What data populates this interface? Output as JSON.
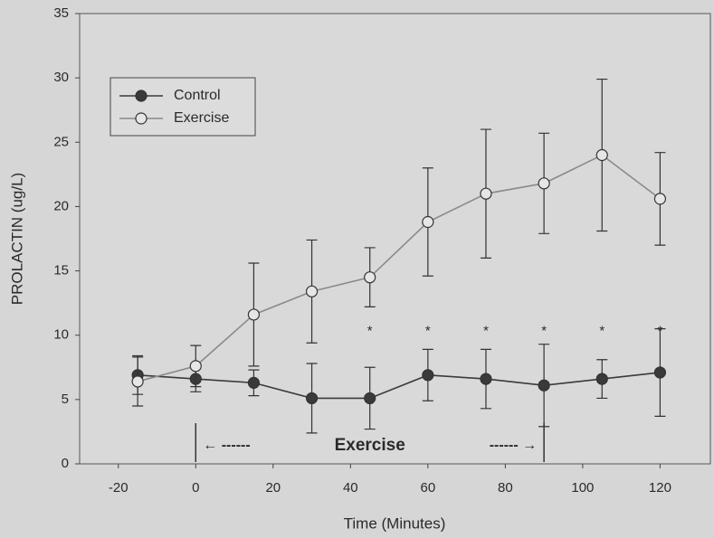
{
  "chart_data": {
    "type": "line",
    "xlabel": "Time (Minutes)",
    "ylabel": "PROLACTIN (ug/L)",
    "x": [
      -15,
      0,
      15,
      30,
      45,
      60,
      75,
      90,
      105,
      120
    ],
    "series": [
      {
        "name": "Control",
        "color": "#3a3a3a",
        "marker_fill": "#3a3a3a",
        "values": [
          6.9,
          6.6,
          6.3,
          5.1,
          5.1,
          6.9,
          6.6,
          6.1,
          6.6,
          7.1
        ],
        "errors": [
          1.5,
          1.0,
          1.0,
          2.7,
          2.4,
          2.0,
          2.3,
          3.2,
          1.5,
          3.4
        ]
      },
      {
        "name": "Exercise",
        "color": "#8a8a8a",
        "marker_fill": "#e6e6e6",
        "values": [
          6.4,
          7.6,
          11.6,
          13.4,
          14.5,
          18.8,
          21.0,
          21.8,
          24.0,
          20.6
        ],
        "errors": [
          1.9,
          1.6,
          4.0,
          4.0,
          2.3,
          4.2,
          5.0,
          3.9,
          5.9,
          3.6
        ]
      }
    ],
    "significance": {
      "label": "*",
      "x": [
        45,
        60,
        75,
        90,
        105,
        120
      ]
    },
    "exercise_period": {
      "start": 0,
      "end": 90,
      "label": "Exercise",
      "left_arrow": "← ------",
      "right_arrow": "------ →"
    },
    "xlim": [
      -30,
      133
    ],
    "ylim": [
      0,
      35
    ],
    "xticks": [
      -20,
      0,
      20,
      40,
      60,
      80,
      100,
      120
    ],
    "yticks": [
      0,
      5,
      10,
      15,
      20,
      25,
      30,
      35
    ],
    "legend": "upper left"
  }
}
